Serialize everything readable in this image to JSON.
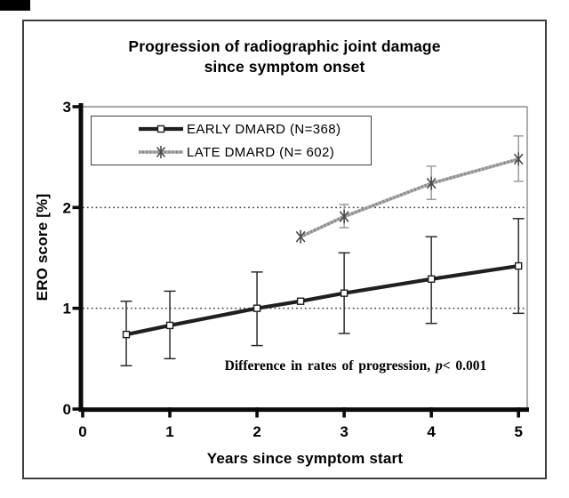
{
  "chart_data": {
    "type": "line",
    "title": "Progression of radiographic joint damage since symptom onset",
    "title_lines": {
      "line1": "Progression of radiographic joint damage",
      "line2": "since symptom onset"
    },
    "xlabel": "Years since symptom start",
    "ylabel": "ERO score [%]",
    "xlim": [
      0,
      5.1
    ],
    "ylim": [
      0,
      3
    ],
    "xticks": [
      0,
      1,
      2,
      3,
      4,
      5
    ],
    "yticks": [
      0,
      1,
      2,
      3
    ],
    "grid_y": [
      1,
      2
    ],
    "grid_style": "dotted",
    "legend_position": "top-left-inside",
    "annotation": {
      "text": "Difference in rates of progression, ",
      "p": "p",
      "value": "< 0.001"
    },
    "colors": {
      "axis": "#0a0a0a",
      "grid": "#3a3a3a",
      "plot_border": "#8c8c8c",
      "frame": "#3d3d3d",
      "early_line": "#1f1f1f",
      "late_line": "#ababab",
      "late_marker": "#4a4a4a"
    },
    "series": [
      {
        "name": "EARLY DMARD (N=368)",
        "n": 368,
        "marker": "square",
        "line_color": "#1f1f1f",
        "marker_color": "#1f1f1f",
        "error_color": "#2b2b2b",
        "textured": false,
        "line_width": 4.2,
        "points": [
          {
            "x": 0.5,
            "y": 0.74,
            "lo": 0.43,
            "hi": 1.07
          },
          {
            "x": 1.0,
            "y": 0.83,
            "lo": 0.5,
            "hi": 1.17
          },
          {
            "x": 2.0,
            "y": 1.0,
            "lo": 0.63,
            "hi": 1.36
          },
          {
            "x": 2.5,
            "y": 1.07
          },
          {
            "x": 3.0,
            "y": 1.15,
            "lo": 0.75,
            "hi": 1.55
          },
          {
            "x": 4.0,
            "y": 1.29,
            "lo": 0.85,
            "hi": 1.71
          },
          {
            "x": 5.0,
            "y": 1.42,
            "lo": 0.95,
            "hi": 1.89
          }
        ]
      },
      {
        "name": "LATE DMARD (N= 602)",
        "n": 602,
        "marker": "asterisk",
        "line_color": "#ababab",
        "marker_color": "#4a4a4a",
        "error_color": "#9b9b9b",
        "textured": true,
        "line_width": 3.6,
        "points": [
          {
            "x": 2.5,
            "y": 1.71
          },
          {
            "x": 3.0,
            "y": 1.91,
            "lo": 1.8,
            "hi": 2.03
          },
          {
            "x": 4.0,
            "y": 2.24,
            "lo": 2.08,
            "hi": 2.41
          },
          {
            "x": 5.0,
            "y": 2.48,
            "lo": 2.26,
            "hi": 2.71
          }
        ]
      }
    ]
  }
}
